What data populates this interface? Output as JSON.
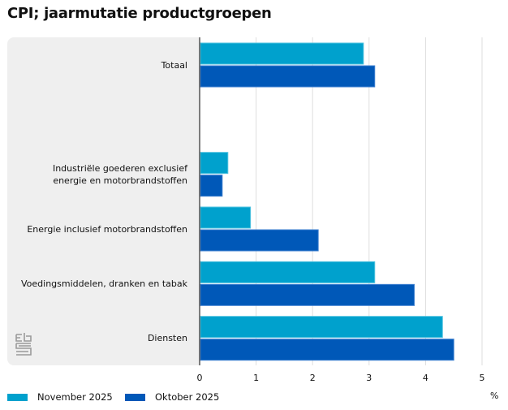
{
  "chart_data": {
    "type": "bar",
    "orientation": "horizontal",
    "title": "CPI; jaarmutatie productgroepen",
    "categories": [
      "Totaal",
      "",
      "Industriële goederen exclusief energie en motorbrandstoffen",
      "Energie inclusief motorbrandstoffen",
      "Voedingsmiddelen, dranken en tabak",
      "Diensten"
    ],
    "category_lines": [
      [
        "Totaal"
      ],
      [],
      [
        "Industriële goederen exclusief",
        "energie en motorbrandstoffen"
      ],
      [
        "Energie inclusief motorbrandstoffen"
      ],
      [
        "Voedingsmiddelen, dranken en tabak"
      ],
      [
        "Diensten"
      ]
    ],
    "series": [
      {
        "name": "November 2025",
        "color": "#00a1cd",
        "values": [
          2.9,
          null,
          0.5,
          0.9,
          3.1,
          4.3
        ]
      },
      {
        "name": "Oktober 2025",
        "color": "#0058b8",
        "values": [
          3.1,
          null,
          0.4,
          2.1,
          3.8,
          4.5
        ]
      }
    ],
    "xlabel": "%",
    "ylabel": "",
    "xlim": [
      0,
      5
    ],
    "xticks": [
      0,
      1,
      2,
      3,
      4,
      5
    ],
    "grid": true,
    "legend": "bottom-left"
  },
  "legend": {
    "items": [
      {
        "label": "November 2025",
        "color": "#00a1cd"
      },
      {
        "label": "Oktober 2025",
        "color": "#0058b8"
      }
    ]
  },
  "axis_unit": "%",
  "logo": "cbs-logo"
}
